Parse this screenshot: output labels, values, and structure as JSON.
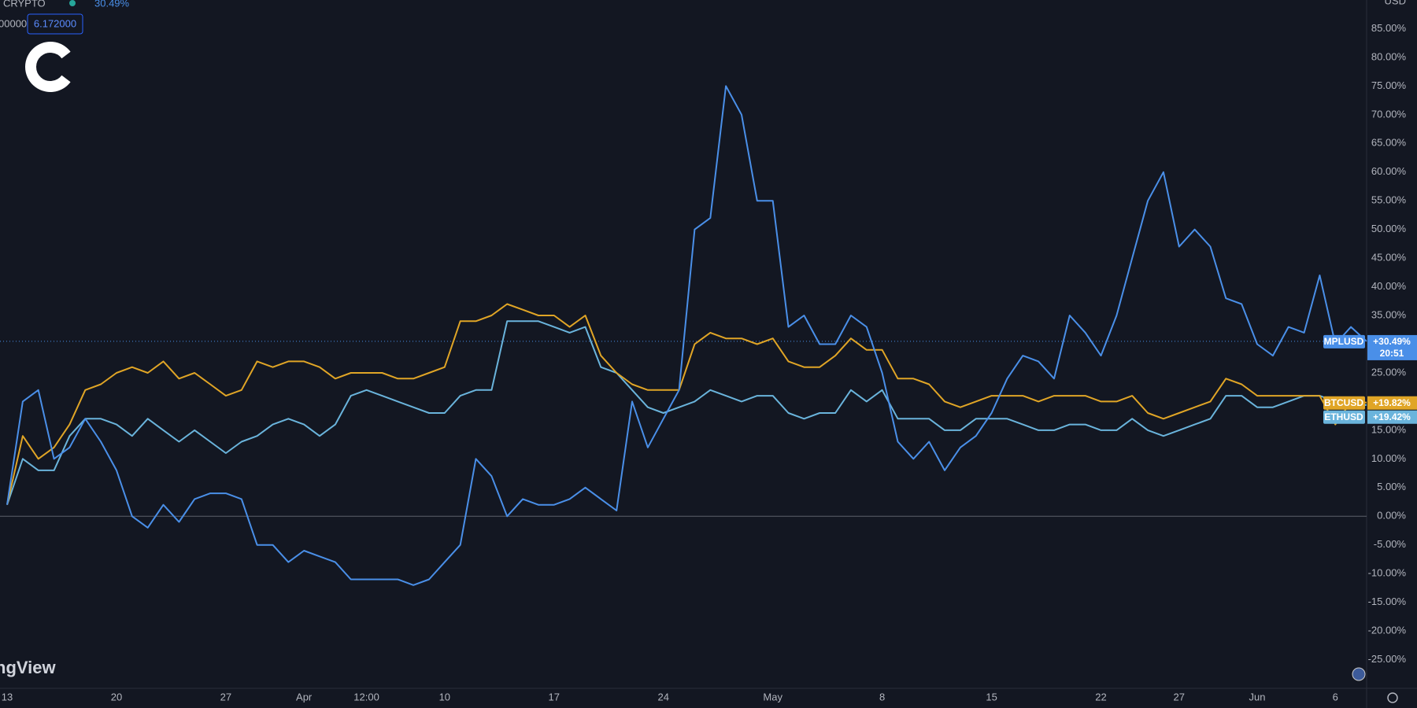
{
  "header": {
    "symbol": "· CRYPTO",
    "change": "30.49%",
    "price_fragment": "00000",
    "price": "6.172000",
    "watermark": "ngView"
  },
  "chart_data": {
    "type": "line",
    "axis_unit": "USD",
    "categories": [
      "13",
      null,
      null,
      null,
      null,
      null,
      null,
      "20",
      null,
      null,
      null,
      null,
      null,
      null,
      "27",
      null,
      null,
      null,
      null,
      "Apr",
      null,
      null,
      null,
      "12:00",
      null,
      null,
      null,
      null,
      "10",
      null,
      null,
      null,
      null,
      null,
      null,
      "17",
      null,
      null,
      null,
      null,
      null,
      null,
      "24",
      null,
      null,
      null,
      null,
      null,
      null,
      "May",
      null,
      null,
      null,
      null,
      null,
      null,
      "8",
      null,
      null,
      null,
      null,
      null,
      null,
      "15",
      null,
      null,
      null,
      null,
      null,
      null,
      "22",
      null,
      null,
      null,
      null,
      "27",
      null,
      null,
      null,
      null,
      "Jun",
      null,
      null,
      null,
      null,
      "6",
      null,
      null
    ],
    "series": [
      {
        "name": "MPLUSD",
        "color": "#4a8fe8",
        "countdown": "20:51",
        "values": [
          2,
          20,
          22,
          10,
          12,
          17,
          13,
          8,
          0,
          -2,
          2,
          -1,
          3,
          4,
          4,
          3,
          -5,
          -5,
          -8,
          -6,
          -7,
          -8,
          -11,
          -11,
          -11,
          -11,
          -12,
          -11,
          -8,
          -5,
          10,
          7,
          0,
          3,
          2,
          2,
          3,
          5,
          3,
          1,
          20,
          12,
          17,
          22,
          50,
          52,
          75,
          70,
          55,
          55,
          33,
          35,
          30,
          30,
          35,
          33,
          25,
          13,
          10,
          13,
          8,
          12,
          14,
          18,
          24,
          28,
          27,
          24,
          35,
          32,
          28,
          35,
          45,
          55,
          60,
          47,
          50,
          47,
          38,
          37,
          30,
          28,
          33,
          32,
          42,
          30,
          33,
          30.49
        ],
        "value_labels": [
          null,
          null,
          null,
          null,
          null,
          null,
          null,
          null,
          null,
          null,
          null,
          null,
          null,
          null,
          null,
          null,
          null,
          null,
          null,
          null,
          null,
          null,
          null,
          null,
          null,
          null,
          null,
          null,
          null,
          null,
          null,
          null,
          null,
          null,
          null,
          null,
          null,
          null,
          null,
          null,
          null,
          null,
          null,
          null,
          null,
          null,
          null,
          null,
          null,
          null,
          null,
          null,
          null,
          null,
          null,
          null,
          null,
          null,
          null,
          null,
          null,
          null,
          null,
          null,
          null,
          null,
          null,
          null,
          null,
          null,
          null,
          null,
          null,
          null,
          null,
          null,
          null,
          null,
          null,
          null,
          null,
          null,
          null,
          null,
          null,
          null,
          null,
          "+30.49%"
        ]
      },
      {
        "name": "BTCUSD",
        "color": "#e0a526",
        "values": [
          2,
          14,
          10,
          12,
          16,
          22,
          23,
          25,
          26,
          25,
          27,
          24,
          25,
          23,
          21,
          22,
          27,
          26,
          27,
          27,
          26,
          24,
          25,
          25,
          25,
          24,
          24,
          25,
          26,
          34,
          34,
          35,
          37,
          36,
          35,
          35,
          33,
          35,
          28,
          25,
          23,
          22,
          22,
          22,
          30,
          32,
          31,
          31,
          30,
          31,
          27,
          26,
          26,
          28,
          31,
          29,
          29,
          24,
          24,
          23,
          20,
          19,
          20,
          21,
          21,
          21,
          20,
          21,
          21,
          21,
          20,
          20,
          21,
          18,
          17,
          18,
          19,
          20,
          24,
          23,
          21,
          21,
          21,
          21,
          21,
          16,
          20,
          19.82
        ],
        "value_labels": [
          null,
          null,
          null,
          null,
          null,
          null,
          null,
          null,
          null,
          null,
          null,
          null,
          null,
          null,
          null,
          null,
          null,
          null,
          null,
          null,
          null,
          null,
          null,
          null,
          null,
          null,
          null,
          null,
          null,
          null,
          null,
          null,
          null,
          null,
          null,
          null,
          null,
          null,
          null,
          null,
          null,
          null,
          null,
          null,
          null,
          null,
          null,
          null,
          null,
          null,
          null,
          null,
          null,
          null,
          null,
          null,
          null,
          null,
          null,
          null,
          null,
          null,
          null,
          null,
          null,
          null,
          null,
          null,
          null,
          null,
          null,
          null,
          null,
          null,
          null,
          null,
          null,
          null,
          null,
          null,
          null,
          null,
          null,
          null,
          null,
          null,
          null,
          "+19.82%"
        ]
      },
      {
        "name": "ETHUSD",
        "color": "#6ab4dc",
        "values": [
          2,
          10,
          8,
          8,
          14,
          17,
          17,
          16,
          14,
          17,
          15,
          13,
          15,
          13,
          11,
          13,
          14,
          16,
          17,
          16,
          14,
          16,
          21,
          22,
          21,
          20,
          19,
          18,
          18,
          21,
          22,
          22,
          34,
          34,
          34,
          33,
          32,
          33,
          26,
          25,
          22,
          19,
          18,
          19,
          20,
          22,
          21,
          20,
          21,
          21,
          18,
          17,
          18,
          18,
          22,
          20,
          22,
          17,
          17,
          17,
          15,
          15,
          17,
          17,
          17,
          16,
          15,
          15,
          16,
          16,
          15,
          15,
          17,
          15,
          14,
          15,
          16,
          17,
          21,
          21,
          19,
          19,
          20,
          21,
          21,
          20,
          19,
          19.42
        ],
        "value_labels": [
          null,
          null,
          null,
          null,
          null,
          null,
          null,
          null,
          null,
          null,
          null,
          null,
          null,
          null,
          null,
          null,
          null,
          null,
          null,
          null,
          null,
          null,
          null,
          null,
          null,
          null,
          null,
          null,
          null,
          null,
          null,
          null,
          null,
          null,
          null,
          null,
          null,
          null,
          null,
          null,
          null,
          null,
          null,
          null,
          null,
          null,
          null,
          null,
          null,
          null,
          null,
          null,
          null,
          null,
          null,
          null,
          null,
          null,
          null,
          null,
          null,
          null,
          null,
          null,
          null,
          null,
          null,
          null,
          null,
          null,
          null,
          null,
          null,
          null,
          null,
          null,
          null,
          null,
          null,
          null,
          null,
          null,
          null,
          null,
          null,
          null,
          null,
          "+19.42%"
        ]
      }
    ],
    "ylim": [
      -30,
      90
    ],
    "yticks": [
      {
        "value": -25,
        "label": "-25.00%"
      },
      {
        "value": -20,
        "label": "-20.00%"
      },
      {
        "value": -15,
        "label": "-15.00%"
      },
      {
        "value": -10,
        "label": "-10.00%"
      },
      {
        "value": -5,
        "label": "-5.00%"
      },
      {
        "value": 0,
        "label": "0.00%"
      },
      {
        "value": 5,
        "label": "5.00%"
      },
      {
        "value": 10,
        "label": "10.00%"
      },
      {
        "value": 15,
        "label": "15.00%"
      },
      {
        "value": 20,
        "label": "20.00%"
      },
      {
        "value": 25,
        "label": "25.00%"
      },
      {
        "value": 30,
        "label": "30.00%"
      },
      {
        "value": 35,
        "label": "35.00%"
      },
      {
        "value": 40,
        "label": "40.00%"
      },
      {
        "value": 45,
        "label": "45.00%"
      },
      {
        "value": 50,
        "label": "50.00%"
      },
      {
        "value": 55,
        "label": "55.00%"
      },
      {
        "value": 60,
        "label": "60.00%"
      },
      {
        "value": 65,
        "label": "65.00%"
      },
      {
        "value": 70,
        "label": "70.00%"
      },
      {
        "value": 75,
        "label": "75.00%"
      },
      {
        "value": 80,
        "label": "80.00%"
      },
      {
        "value": 85,
        "label": "85.00%"
      }
    ],
    "grid": false
  }
}
